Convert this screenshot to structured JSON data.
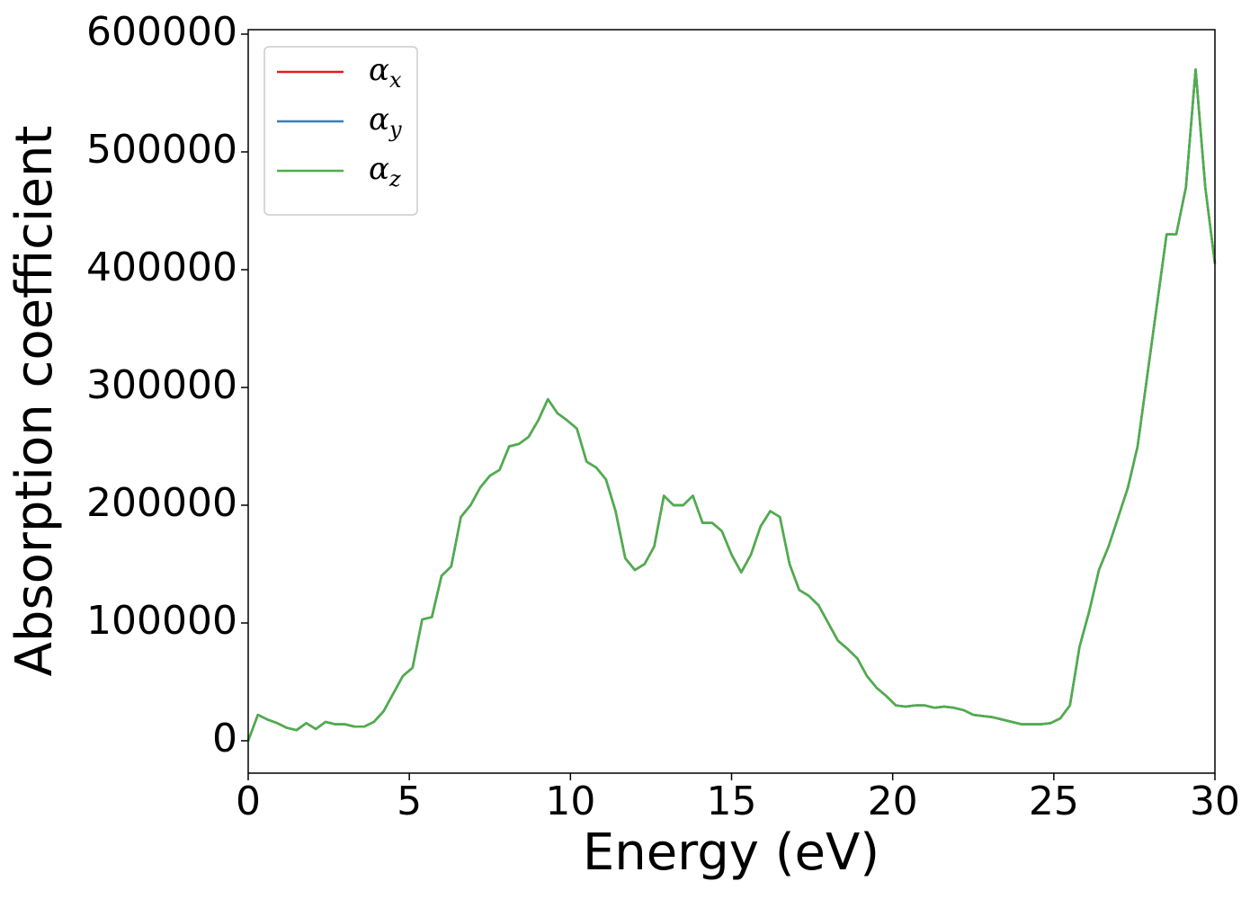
{
  "chart_data": {
    "type": "line",
    "xlabel": "Energy (eV)",
    "ylabel": "Absorption coefficient",
    "x": [
      0,
      0.3,
      0.6,
      0.9,
      1.2,
      1.5,
      1.8,
      2.1,
      2.4,
      2.7,
      3.0,
      3.3,
      3.6,
      3.9,
      4.2,
      4.5,
      4.8,
      5.1,
      5.4,
      5.7,
      6.0,
      6.3,
      6.6,
      6.9,
      7.2,
      7.5,
      7.8,
      8.1,
      8.4,
      8.7,
      9.0,
      9.3,
      9.6,
      9.9,
      10.2,
      10.5,
      10.8,
      11.1,
      11.4,
      11.7,
      12.0,
      12.3,
      12.6,
      12.9,
      13.2,
      13.5,
      13.8,
      14.1,
      14.4,
      14.7,
      15.0,
      15.3,
      15.6,
      15.9,
      16.2,
      16.5,
      16.8,
      17.1,
      17.4,
      17.7,
      18.0,
      18.3,
      18.6,
      18.9,
      19.2,
      19.5,
      19.8,
      20.1,
      20.4,
      20.7,
      21.0,
      21.3,
      21.6,
      21.9,
      22.2,
      22.5,
      22.8,
      23.1,
      23.4,
      23.7,
      24.0,
      24.3,
      24.6,
      24.9,
      25.2,
      25.5,
      25.8,
      26.1,
      26.4,
      26.7,
      27.0,
      27.3,
      27.6,
      27.9,
      28.2,
      28.5,
      28.8,
      29.1,
      29.4,
      29.7,
      30.0
    ],
    "series": [
      {
        "name": "αx",
        "color": "#e41a1c",
        "values": [
          0,
          22000,
          18000,
          15000,
          11000,
          9000,
          15000,
          10000,
          16000,
          14000,
          14000,
          12000,
          12000,
          16000,
          25000,
          40000,
          55000,
          62000,
          103000,
          105000,
          140000,
          148000,
          190000,
          200000,
          215000,
          225000,
          230000,
          250000,
          252000,
          258000,
          272000,
          290000,
          278000,
          272000,
          265000,
          237000,
          232000,
          222000,
          195000,
          155000,
          145000,
          150000,
          165000,
          208000,
          200000,
          200000,
          208000,
          185000,
          185000,
          178000,
          158000,
          143000,
          158000,
          182000,
          195000,
          190000,
          150000,
          128000,
          123000,
          115000,
          100000,
          85000,
          78000,
          70000,
          55000,
          45000,
          38000,
          30000,
          29000,
          30000,
          30000,
          28000,
          29000,
          28000,
          26000,
          22000,
          21000,
          20000,
          18000,
          16000,
          14000,
          14000,
          14000,
          15000,
          19000,
          30000,
          80000,
          110000,
          145000,
          165000,
          190000,
          215000,
          250000,
          310000,
          370000,
          430000,
          430000,
          470000,
          570000,
          470000,
          405000
        ]
      },
      {
        "name": "αy",
        "color": "#377eb8",
        "values": [
          0,
          22000,
          18000,
          15000,
          11000,
          9000,
          15000,
          10000,
          16000,
          14000,
          14000,
          12000,
          12000,
          16000,
          25000,
          40000,
          55000,
          62000,
          103000,
          105000,
          140000,
          148000,
          190000,
          200000,
          215000,
          225000,
          230000,
          250000,
          252000,
          258000,
          272000,
          290000,
          278000,
          272000,
          265000,
          237000,
          232000,
          222000,
          195000,
          155000,
          145000,
          150000,
          165000,
          208000,
          200000,
          200000,
          208000,
          185000,
          185000,
          178000,
          158000,
          143000,
          158000,
          182000,
          195000,
          190000,
          150000,
          128000,
          123000,
          115000,
          100000,
          85000,
          78000,
          70000,
          55000,
          45000,
          38000,
          30000,
          29000,
          30000,
          30000,
          28000,
          29000,
          28000,
          26000,
          22000,
          21000,
          20000,
          18000,
          16000,
          14000,
          14000,
          14000,
          15000,
          19000,
          30000,
          80000,
          110000,
          145000,
          165000,
          190000,
          215000,
          250000,
          310000,
          370000,
          430000,
          430000,
          470000,
          570000,
          470000,
          405000
        ]
      },
      {
        "name": "αz",
        "color": "#4daf4a",
        "values": [
          0,
          22000,
          18000,
          15000,
          11000,
          9000,
          15000,
          10000,
          16000,
          14000,
          14000,
          12000,
          12000,
          16000,
          25000,
          40000,
          55000,
          62000,
          103000,
          105000,
          140000,
          148000,
          190000,
          200000,
          215000,
          225000,
          230000,
          250000,
          252000,
          258000,
          272000,
          290000,
          278000,
          272000,
          265000,
          237000,
          232000,
          222000,
          195000,
          155000,
          145000,
          150000,
          165000,
          208000,
          200000,
          200000,
          208000,
          185000,
          185000,
          178000,
          158000,
          143000,
          158000,
          182000,
          195000,
          190000,
          150000,
          128000,
          123000,
          115000,
          100000,
          85000,
          78000,
          70000,
          55000,
          45000,
          38000,
          30000,
          29000,
          30000,
          30000,
          28000,
          29000,
          28000,
          26000,
          22000,
          21000,
          20000,
          18000,
          16000,
          14000,
          14000,
          14000,
          15000,
          19000,
          30000,
          80000,
          110000,
          145000,
          165000,
          190000,
          215000,
          250000,
          310000,
          370000,
          430000,
          430000,
          470000,
          570000,
          470000,
          405000
        ]
      }
    ],
    "xlim": [
      0,
      30
    ],
    "xticks": [
      0,
      5,
      10,
      15,
      20,
      25,
      30
    ],
    "ylim": [
      -27500,
      603800
    ],
    "yticks": [
      0,
      100000,
      200000,
      300000,
      400000,
      500000,
      600000
    ],
    "legend": "upper left",
    "grid": false
  }
}
